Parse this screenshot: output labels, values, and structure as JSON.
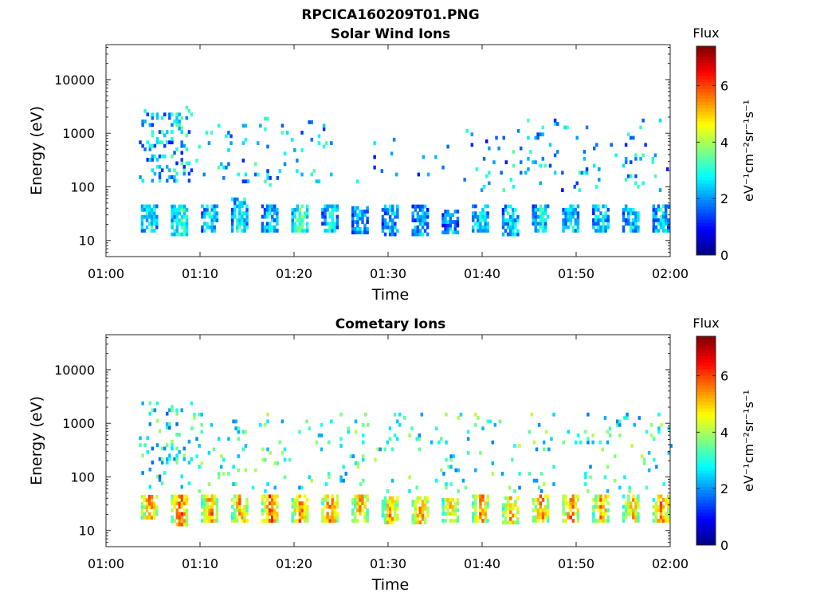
{
  "figure": {
    "title": "RPCICA160209T01.PNG"
  },
  "chart_data": [
    {
      "type": "heatmap",
      "title": "Solar Wind Ions",
      "xlabel": "Time",
      "ylabel": "Energy (eV)",
      "xlim": [
        "01:00",
        "02:00"
      ],
      "x_ticks": [
        "01:00",
        "01:10",
        "01:20",
        "01:30",
        "01:40",
        "01:50",
        "02:00"
      ],
      "y_scale": "log",
      "ylim": [
        5,
        45000
      ],
      "y_ticks": [
        "10",
        "100",
        "1000",
        "10000"
      ],
      "colorbar": {
        "label": "Flux",
        "unit": "eV⁻¹cm⁻²sr⁻¹s⁻¹",
        "ticks": [
          "0",
          "2",
          "4",
          "6"
        ],
        "range": [
          0,
          7.4
        ],
        "colormap": "jet"
      },
      "grid": false,
      "bursts": [
        {
          "t": 4.6,
          "e_lo": 14,
          "e_hi": 45,
          "flux": 3.0
        },
        {
          "t": 7.8,
          "e_lo": 12,
          "e_hi": 45,
          "flux": 3.3
        },
        {
          "t": 11.0,
          "e_lo": 14,
          "e_hi": 42,
          "flux": 2.8
        },
        {
          "t": 14.2,
          "e_lo": 14,
          "e_hi": 55,
          "flux": 3.1
        },
        {
          "t": 17.4,
          "e_lo": 14,
          "e_hi": 45,
          "flux": 2.6
        },
        {
          "t": 20.6,
          "e_lo": 14,
          "e_hi": 45,
          "flux": 3.4
        },
        {
          "t": 23.8,
          "e_lo": 14,
          "e_hi": 45,
          "flux": 2.7
        },
        {
          "t": 27.0,
          "e_lo": 13,
          "e_hi": 40,
          "flux": 2.6
        },
        {
          "t": 30.2,
          "e_lo": 12,
          "e_hi": 40,
          "flux": 2.4
        },
        {
          "t": 33.4,
          "e_lo": 12,
          "e_hi": 40,
          "flux": 2.4
        },
        {
          "t": 36.6,
          "e_lo": 13,
          "e_hi": 35,
          "flux": 2.3
        },
        {
          "t": 39.8,
          "e_lo": 14,
          "e_hi": 40,
          "flux": 2.9
        },
        {
          "t": 43.0,
          "e_lo": 12,
          "e_hi": 45,
          "flux": 2.8
        },
        {
          "t": 46.2,
          "e_lo": 14,
          "e_hi": 45,
          "flux": 2.9
        },
        {
          "t": 49.4,
          "e_lo": 14,
          "e_hi": 45,
          "flux": 2.7
        },
        {
          "t": 52.6,
          "e_lo": 14,
          "e_hi": 45,
          "flux": 2.8
        },
        {
          "t": 55.8,
          "e_lo": 14,
          "e_hi": 40,
          "flux": 2.6
        },
        {
          "t": 59.0,
          "e_lo": 14,
          "e_hi": 40,
          "flux": 2.8
        }
      ],
      "sparse": [
        {
          "t0": 3.5,
          "t1": 9.0,
          "e_lo": 120,
          "e_hi": 3000,
          "density": 0.22,
          "flux": 2.3
        },
        {
          "t0": 9.0,
          "t1": 24.0,
          "e_lo": 100,
          "e_hi": 1800,
          "density": 0.07,
          "flux": 2.3
        },
        {
          "t0": 24.0,
          "t1": 38.0,
          "e_lo": 100,
          "e_hi": 900,
          "density": 0.012,
          "flux": 1.8
        },
        {
          "t0": 38.0,
          "t1": 60.0,
          "e_lo": 80,
          "e_hi": 1600,
          "density": 0.05,
          "flux": 2.2
        }
      ]
    },
    {
      "type": "heatmap",
      "title": "Cometary Ions",
      "xlabel": "Time",
      "ylabel": "Energy (eV)",
      "xlim": [
        "01:00",
        "02:00"
      ],
      "x_ticks": [
        "01:00",
        "01:10",
        "01:20",
        "01:30",
        "01:40",
        "01:50",
        "02:00"
      ],
      "y_scale": "log",
      "ylim": [
        5,
        45000
      ],
      "y_ticks": [
        "10",
        "100",
        "1000",
        "10000"
      ],
      "colorbar": {
        "label": "Flux",
        "unit": "eV⁻¹cm⁻²sr⁻¹s⁻¹",
        "ticks": [
          "0",
          "2",
          "4",
          "6"
        ],
        "range": [
          0,
          7.4
        ],
        "colormap": "jet"
      },
      "grid": false,
      "bursts": [
        {
          "t": 4.6,
          "e_lo": 16,
          "e_hi": 45,
          "flux": 5.6
        },
        {
          "t": 7.8,
          "e_lo": 12,
          "e_hi": 45,
          "flux": 5.9
        },
        {
          "t": 11.0,
          "e_lo": 14,
          "e_hi": 42,
          "flux": 5.7
        },
        {
          "t": 14.2,
          "e_lo": 14,
          "e_hi": 45,
          "flux": 5.5
        },
        {
          "t": 17.4,
          "e_lo": 14,
          "e_hi": 45,
          "flux": 6.1
        },
        {
          "t": 20.6,
          "e_lo": 14,
          "e_hi": 45,
          "flux": 5.8
        },
        {
          "t": 23.8,
          "e_lo": 14,
          "e_hi": 45,
          "flux": 5.8
        },
        {
          "t": 27.0,
          "e_lo": 14,
          "e_hi": 40,
          "flux": 5.3
        },
        {
          "t": 30.2,
          "e_lo": 13,
          "e_hi": 40,
          "flux": 5.4
        },
        {
          "t": 33.4,
          "e_lo": 13,
          "e_hi": 40,
          "flux": 5.4
        },
        {
          "t": 36.6,
          "e_lo": 14,
          "e_hi": 38,
          "flux": 5.2
        },
        {
          "t": 39.8,
          "e_lo": 14,
          "e_hi": 42,
          "flux": 5.5
        },
        {
          "t": 43.0,
          "e_lo": 13,
          "e_hi": 42,
          "flux": 5.4
        },
        {
          "t": 46.2,
          "e_lo": 14,
          "e_hi": 42,
          "flux": 5.5
        },
        {
          "t": 49.4,
          "e_lo": 14,
          "e_hi": 42,
          "flux": 5.7
        },
        {
          "t": 52.6,
          "e_lo": 14,
          "e_hi": 42,
          "flux": 5.5
        },
        {
          "t": 55.8,
          "e_lo": 14,
          "e_hi": 40,
          "flux": 5.3
        },
        {
          "t": 59.0,
          "e_lo": 14,
          "e_hi": 40,
          "flux": 5.6
        }
      ],
      "sparse": [
        {
          "t0": 3.5,
          "t1": 9.0,
          "e_lo": 60,
          "e_hi": 2500,
          "density": 0.12,
          "flux": 2.8
        },
        {
          "t0": 9.0,
          "t1": 60.0,
          "e_lo": 50,
          "e_hi": 1500,
          "density": 0.05,
          "flux": 3.0
        }
      ]
    }
  ]
}
